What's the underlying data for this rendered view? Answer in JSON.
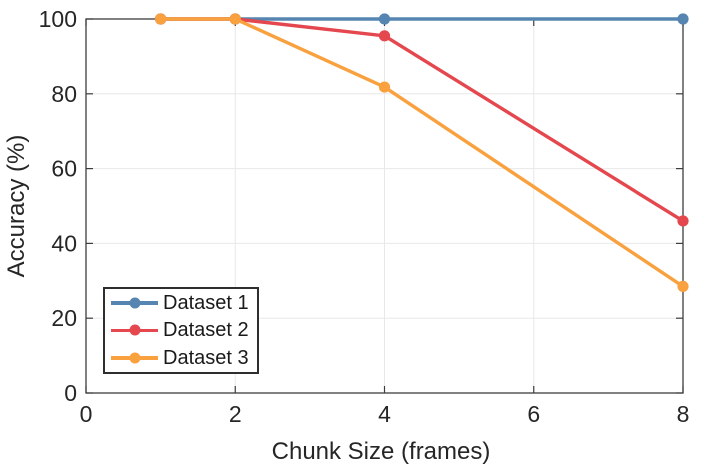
{
  "chart_data": {
    "type": "line",
    "title": "",
    "xlabel": "Chunk Size (frames)",
    "ylabel": "Accuracy (%)",
    "x": [
      1,
      2,
      4,
      8
    ],
    "xlim": [
      0,
      8
    ],
    "ylim": [
      0,
      100
    ],
    "x_ticks": [
      0,
      2,
      4,
      6,
      8
    ],
    "y_ticks": [
      0,
      20,
      40,
      60,
      80,
      100
    ],
    "grid": true,
    "legend_position": "lower-left",
    "marker": "circle",
    "series": [
      {
        "name": "Dataset 1",
        "color": "#5585B0",
        "values": [
          100,
          100,
          100,
          100
        ]
      },
      {
        "name": "Dataset 2",
        "color": "#E4474D",
        "values": [
          100,
          100,
          95.5,
          46
        ]
      },
      {
        "name": "Dataset 3",
        "color": "#F9A13E",
        "values": [
          100,
          100,
          81.8,
          28.5
        ]
      }
    ]
  },
  "style": {
    "background": "#FFFFFF",
    "grid_color": "#E8E8E8",
    "axis_color": "#3D3D3D",
    "text_color": "#262626",
    "legend_border_color": "#2E2E2E"
  }
}
